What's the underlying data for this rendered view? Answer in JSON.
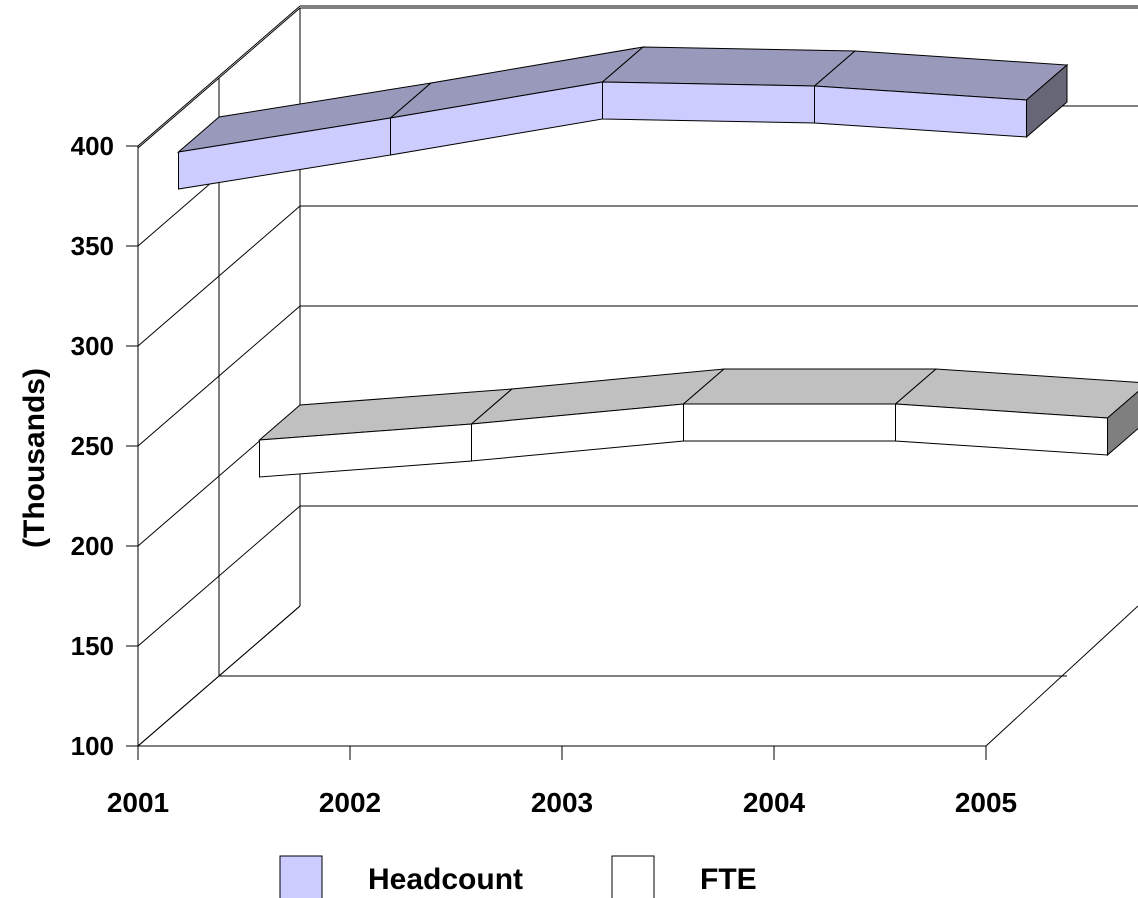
{
  "chart_data": {
    "type": "line",
    "style": "3d-ribbon",
    "ylabel": "(Thousands)",
    "xlabel": "",
    "x": [
      "2001",
      "2002",
      "2003",
      "2004",
      "2005"
    ],
    "ylim": [
      100,
      400
    ],
    "yticks": [
      "100",
      "150",
      "200",
      "250",
      "300",
      "350",
      "400"
    ],
    "grid": true,
    "legend_position": "bottom",
    "series": [
      {
        "name": "Headcount",
        "values": [
          361,
          378,
          396,
          394,
          387
        ],
        "front_color": "#ccccff",
        "top_color": "#9999bb",
        "end_color": "#666677"
      },
      {
        "name": "FTE",
        "values": [
          182,
          190,
          200,
          200,
          193
        ],
        "front_color": "#ffffff",
        "top_color": "#c0c0c0",
        "end_color": "#7f7f7f"
      }
    ]
  }
}
